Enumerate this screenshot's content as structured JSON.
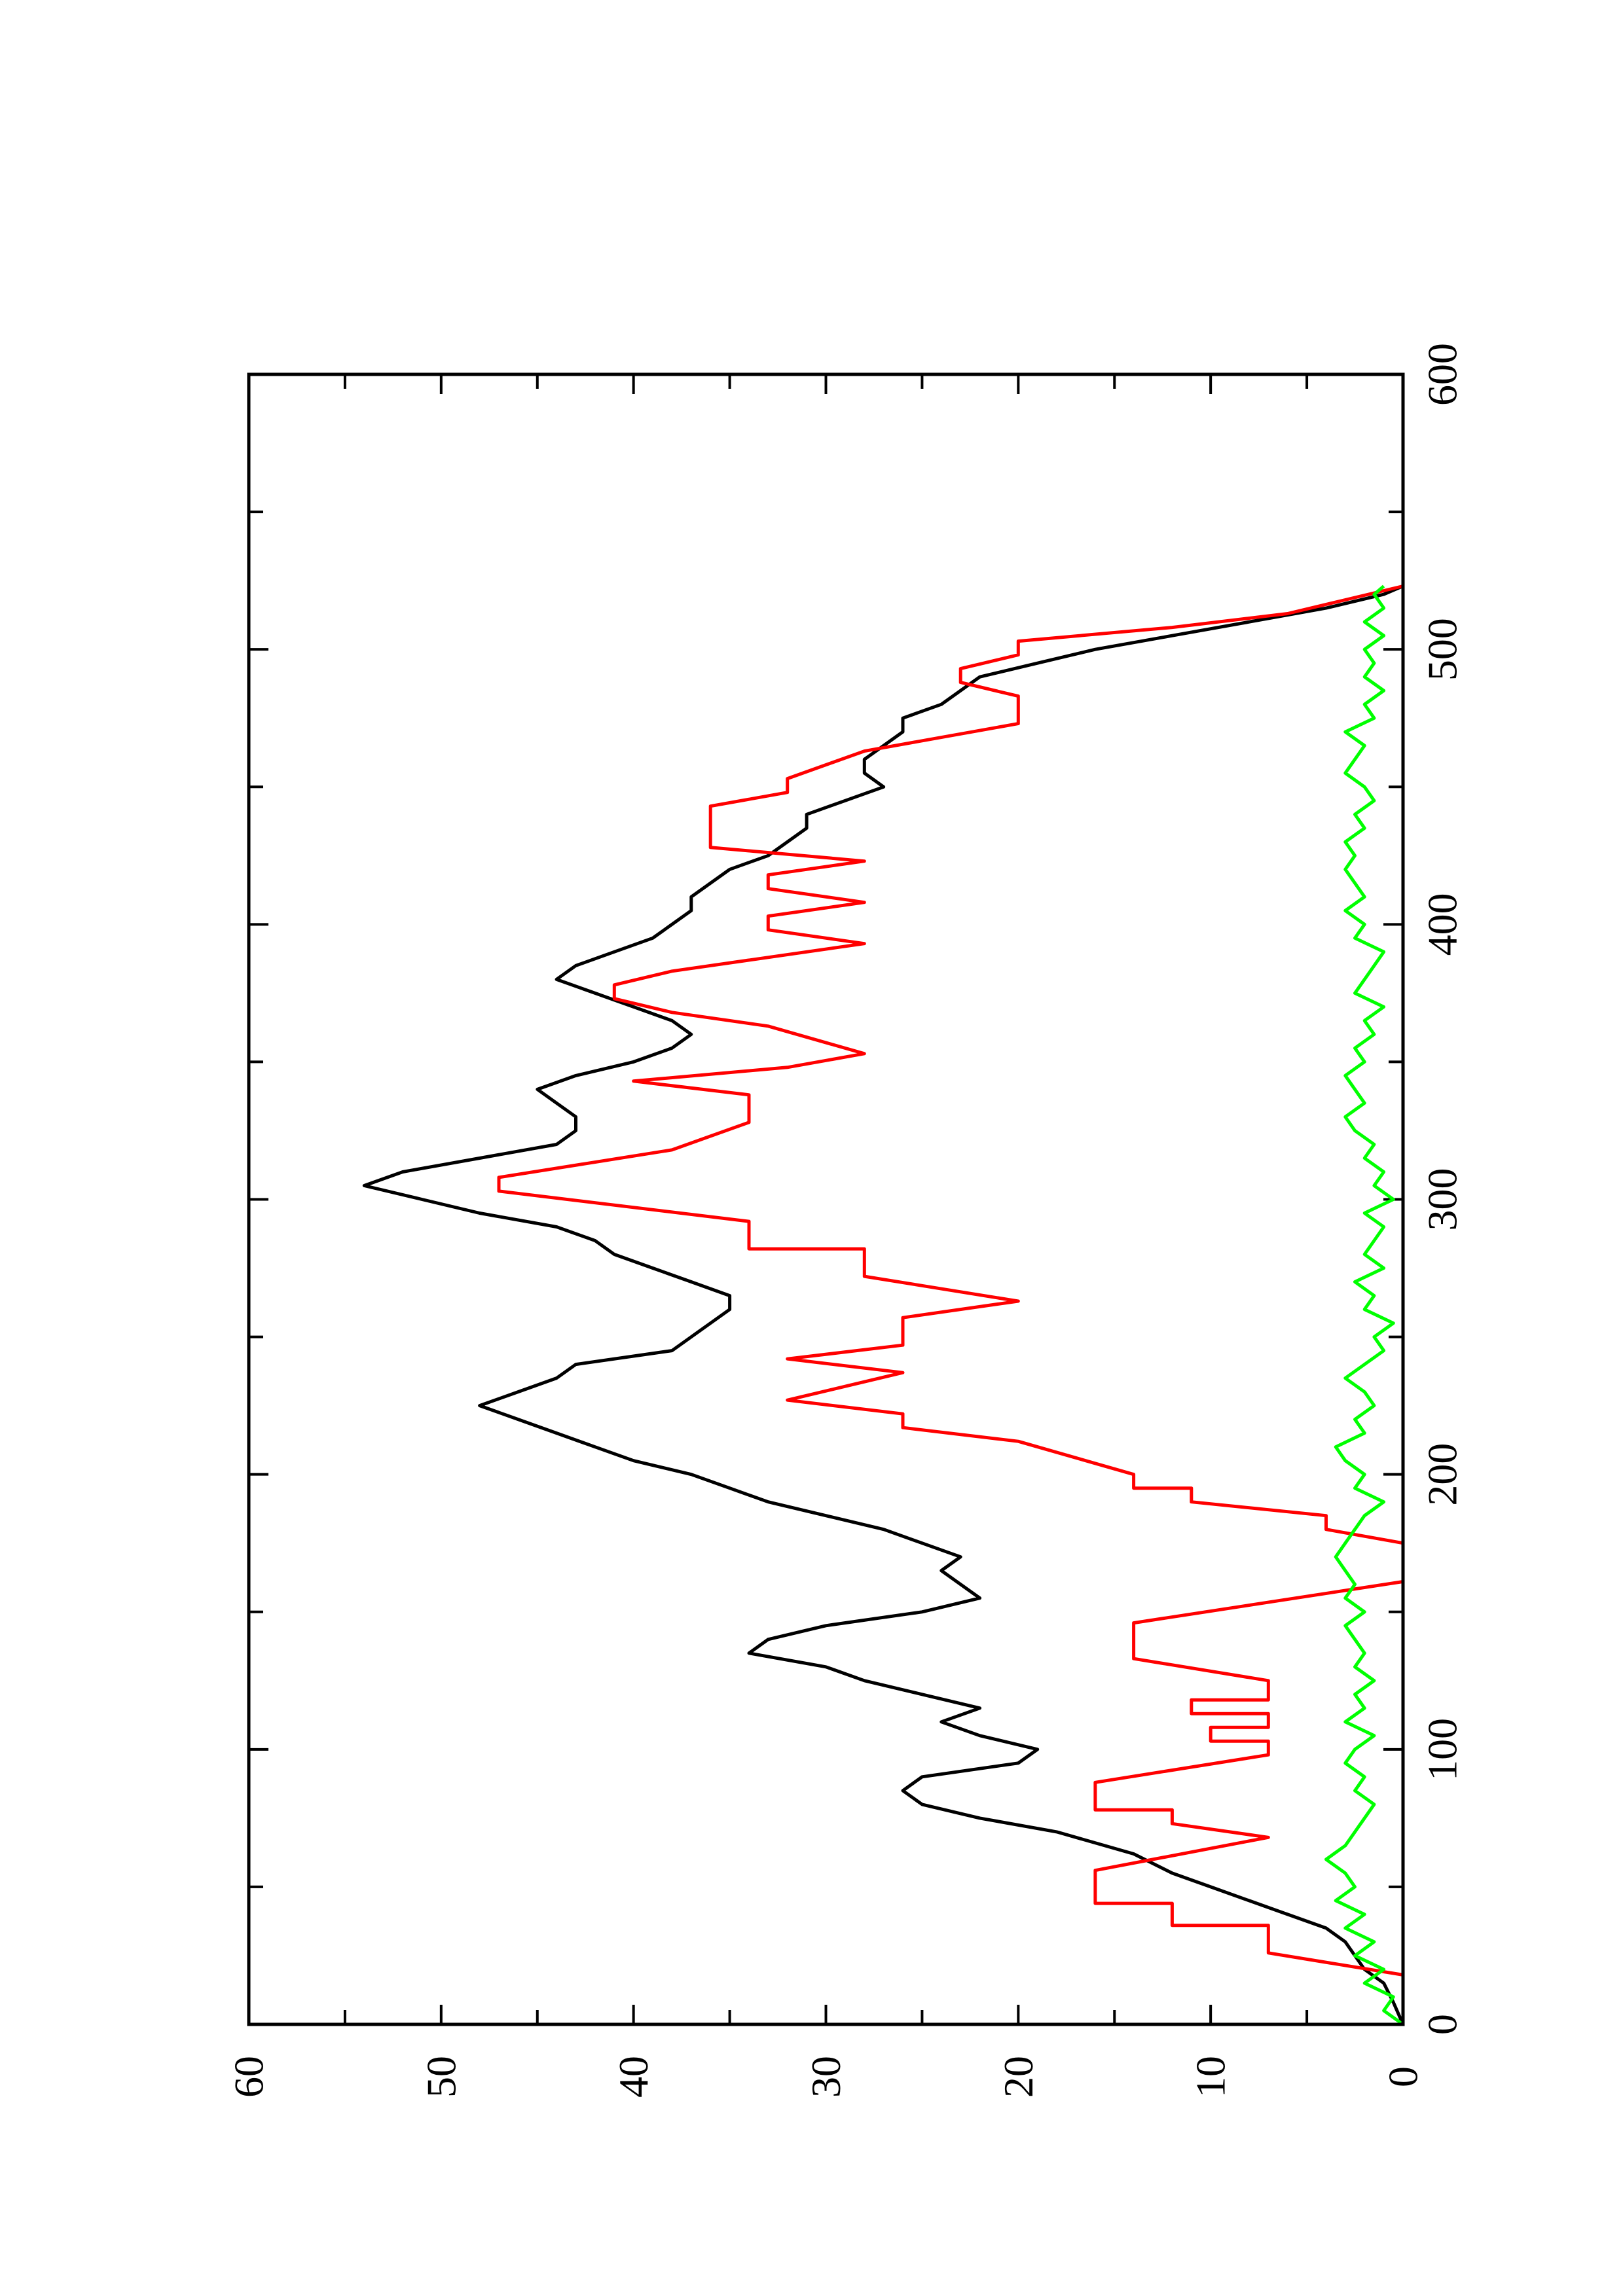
{
  "chart_data": {
    "type": "line",
    "title": "",
    "xlabel": "",
    "ylabel": "",
    "orientation": "rotated-90-ccw",
    "xlim": [
      0,
      600
    ],
    "ylim": [
      0,
      60
    ],
    "x_ticks": [
      "0",
      "100",
      "200",
      "300",
      "400",
      "500",
      "600"
    ],
    "y_ticks": [
      "0",
      "10",
      "20",
      "30",
      "40",
      "50",
      "60"
    ],
    "grid": false,
    "legend": "none",
    "series": [
      {
        "color": "#000000",
        "points": [
          [
            0,
            0
          ],
          [
            8,
            0.5
          ],
          [
            15,
            1
          ],
          [
            20,
            2
          ],
          [
            25,
            2.5
          ],
          [
            30,
            3
          ],
          [
            35,
            4
          ],
          [
            40,
            6
          ],
          [
            45,
            8
          ],
          [
            50,
            10
          ],
          [
            55,
            12
          ],
          [
            62,
            14
          ],
          [
            70,
            18
          ],
          [
            75,
            22
          ],
          [
            80,
            25
          ],
          [
            85,
            26
          ],
          [
            90,
            25
          ],
          [
            95,
            20
          ],
          [
            100,
            19
          ],
          [
            105,
            22
          ],
          [
            110,
            24
          ],
          [
            115,
            22
          ],
          [
            120,
            25
          ],
          [
            125,
            28
          ],
          [
            130,
            30
          ],
          [
            135,
            34
          ],
          [
            140,
            33
          ],
          [
            145,
            30
          ],
          [
            150,
            25
          ],
          [
            155,
            22
          ],
          [
            160,
            23
          ],
          [
            165,
            24
          ],
          [
            170,
            23
          ],
          [
            175,
            25
          ],
          [
            180,
            27
          ],
          [
            185,
            30
          ],
          [
            190,
            33
          ],
          [
            195,
            35
          ],
          [
            200,
            37
          ],
          [
            205,
            40
          ],
          [
            210,
            42
          ],
          [
            215,
            44
          ],
          [
            220,
            46
          ],
          [
            225,
            48
          ],
          [
            230,
            46
          ],
          [
            235,
            44
          ],
          [
            240,
            43
          ],
          [
            245,
            38
          ],
          [
            250,
            37
          ],
          [
            255,
            36
          ],
          [
            260,
            35
          ],
          [
            265,
            35
          ],
          [
            270,
            37
          ],
          [
            275,
            39
          ],
          [
            280,
            41
          ],
          [
            285,
            42
          ],
          [
            290,
            44
          ],
          [
            295,
            48
          ],
          [
            300,
            51
          ],
          [
            305,
            54
          ],
          [
            310,
            52
          ],
          [
            315,
            48
          ],
          [
            320,
            44
          ],
          [
            325,
            43
          ],
          [
            330,
            43
          ],
          [
            335,
            44
          ],
          [
            340,
            45
          ],
          [
            345,
            43
          ],
          [
            350,
            40
          ],
          [
            355,
            38
          ],
          [
            360,
            37
          ],
          [
            365,
            38
          ],
          [
            370,
            40
          ],
          [
            375,
            42
          ],
          [
            380,
            44
          ],
          [
            385,
            43
          ],
          [
            390,
            41
          ],
          [
            395,
            39
          ],
          [
            400,
            38
          ],
          [
            405,
            37
          ],
          [
            410,
            37
          ],
          [
            415,
            36
          ],
          [
            420,
            35
          ],
          [
            425,
            33
          ],
          [
            430,
            32
          ],
          [
            435,
            31
          ],
          [
            440,
            31
          ],
          [
            445,
            29
          ],
          [
            450,
            27
          ],
          [
            455,
            28
          ],
          [
            460,
            28
          ],
          [
            465,
            27
          ],
          [
            470,
            26
          ],
          [
            475,
            26
          ],
          [
            480,
            24
          ],
          [
            485,
            23
          ],
          [
            490,
            22
          ],
          [
            495,
            19
          ],
          [
            500,
            16
          ],
          [
            505,
            12
          ],
          [
            510,
            8
          ],
          [
            515,
            4
          ],
          [
            520,
            1
          ],
          [
            523,
            0
          ]
        ]
      },
      {
        "color": "#ff0000",
        "points": [
          [
            0,
            0
          ],
          [
            18,
            0
          ],
          [
            26,
            7
          ],
          [
            36,
            7
          ],
          [
            36,
            12
          ],
          [
            44,
            12
          ],
          [
            44,
            16
          ],
          [
            56,
            16
          ],
          [
            68,
            7
          ],
          [
            73,
            12
          ],
          [
            78,
            12
          ],
          [
            78,
            16
          ],
          [
            88,
            16
          ],
          [
            98,
            7
          ],
          [
            103,
            7
          ],
          [
            103,
            10
          ],
          [
            108,
            10
          ],
          [
            108,
            7
          ],
          [
            113,
            7
          ],
          [
            113,
            11
          ],
          [
            118,
            11
          ],
          [
            118,
            7
          ],
          [
            125,
            7
          ],
          [
            133,
            14
          ],
          [
            146,
            14
          ],
          [
            161,
            0
          ],
          [
            175,
            0
          ],
          [
            180,
            4
          ],
          [
            185,
            4
          ],
          [
            190,
            11
          ],
          [
            195,
            11
          ],
          [
            195,
            14
          ],
          [
            200,
            14
          ],
          [
            212,
            20
          ],
          [
            217,
            26
          ],
          [
            222,
            26
          ],
          [
            227,
            32
          ],
          [
            232,
            29
          ],
          [
            237,
            26
          ],
          [
            242,
            32
          ],
          [
            247,
            26
          ],
          [
            257,
            26
          ],
          [
            263,
            20
          ],
          [
            272,
            28
          ],
          [
            282,
            28
          ],
          [
            282,
            34
          ],
          [
            292,
            34
          ],
          [
            303,
            47
          ],
          [
            308,
            47
          ],
          [
            318,
            38
          ],
          [
            328,
            34
          ],
          [
            338,
            34
          ],
          [
            343,
            40
          ],
          [
            348,
            32
          ],
          [
            353,
            28
          ],
          [
            363,
            33
          ],
          [
            368,
            38
          ],
          [
            373,
            41
          ],
          [
            378,
            41
          ],
          [
            383,
            38
          ],
          [
            393,
            28
          ],
          [
            398,
            33
          ],
          [
            403,
            33
          ],
          [
            408,
            28
          ],
          [
            413,
            33
          ],
          [
            418,
            33
          ],
          [
            423,
            28
          ],
          [
            428,
            36
          ],
          [
            443,
            36
          ],
          [
            448,
            32
          ],
          [
            453,
            32
          ],
          [
            463,
            28
          ],
          [
            473,
            20
          ],
          [
            483,
            20
          ],
          [
            488,
            23
          ],
          [
            493,
            23
          ],
          [
            498,
            20
          ],
          [
            503,
            20
          ],
          [
            508,
            12
          ],
          [
            513,
            6
          ],
          [
            518,
            3
          ],
          [
            523,
            0
          ]
        ]
      },
      {
        "color": "#00ff00",
        "points": [
          [
            0,
            0
          ],
          [
            5,
            1
          ],
          [
            10,
            0.5
          ],
          [
            15,
            2
          ],
          [
            20,
            1
          ],
          [
            25,
            2.5
          ],
          [
            30,
            1.5
          ],
          [
            35,
            3
          ],
          [
            40,
            2
          ],
          [
            45,
            3.5
          ],
          [
            50,
            2.5
          ],
          [
            55,
            3
          ],
          [
            60,
            4
          ],
          [
            65,
            3
          ],
          [
            70,
            2.5
          ],
          [
            75,
            2
          ],
          [
            80,
            1.5
          ],
          [
            85,
            2.5
          ],
          [
            90,
            2
          ],
          [
            95,
            3
          ],
          [
            100,
            2.5
          ],
          [
            105,
            1.5
          ],
          [
            110,
            3
          ],
          [
            115,
            2
          ],
          [
            120,
            2.5
          ],
          [
            125,
            1.5
          ],
          [
            130,
            2.5
          ],
          [
            135,
            2
          ],
          [
            140,
            2.5
          ],
          [
            145,
            3
          ],
          [
            150,
            2
          ],
          [
            155,
            3
          ],
          [
            160,
            2.5
          ],
          [
            165,
            3
          ],
          [
            170,
            3.5
          ],
          [
            175,
            3
          ],
          [
            180,
            2.5
          ],
          [
            185,
            2
          ],
          [
            190,
            1
          ],
          [
            195,
            2.5
          ],
          [
            200,
            2
          ],
          [
            205,
            3
          ],
          [
            210,
            3.5
          ],
          [
            215,
            2
          ],
          [
            220,
            2.5
          ],
          [
            225,
            1.5
          ],
          [
            230,
            2
          ],
          [
            235,
            3
          ],
          [
            240,
            2
          ],
          [
            245,
            1
          ],
          [
            250,
            1.5
          ],
          [
            255,
            0.5
          ],
          [
            260,
            2
          ],
          [
            265,
            1.5
          ],
          [
            270,
            2.5
          ],
          [
            275,
            1
          ],
          [
            280,
            2
          ],
          [
            285,
            1.5
          ],
          [
            290,
            1
          ],
          [
            295,
            2
          ],
          [
            300,
            0.5
          ],
          [
            305,
            1.5
          ],
          [
            310,
            1
          ],
          [
            315,
            2
          ],
          [
            320,
            1.5
          ],
          [
            325,
            2.5
          ],
          [
            330,
            3
          ],
          [
            335,
            2
          ],
          [
            340,
            2.5
          ],
          [
            345,
            3
          ],
          [
            350,
            2
          ],
          [
            355,
            2.5
          ],
          [
            360,
            1.5
          ],
          [
            365,
            2
          ],
          [
            370,
            1
          ],
          [
            375,
            2.5
          ],
          [
            380,
            2
          ],
          [
            385,
            1.5
          ],
          [
            390,
            1
          ],
          [
            395,
            2.5
          ],
          [
            400,
            2
          ],
          [
            405,
            3
          ],
          [
            410,
            2
          ],
          [
            415,
            2.5
          ],
          [
            420,
            3
          ],
          [
            425,
            2.5
          ],
          [
            430,
            3
          ],
          [
            435,
            2
          ],
          [
            440,
            2.5
          ],
          [
            445,
            1.5
          ],
          [
            450,
            2
          ],
          [
            455,
            3
          ],
          [
            460,
            2.5
          ],
          [
            465,
            2
          ],
          [
            470,
            3
          ],
          [
            475,
            1.5
          ],
          [
            480,
            2
          ],
          [
            485,
            1
          ],
          [
            490,
            2
          ],
          [
            495,
            1.5
          ],
          [
            500,
            2
          ],
          [
            505,
            1
          ],
          [
            510,
            2
          ],
          [
            515,
            1
          ],
          [
            520,
            1.5
          ],
          [
            523,
            1
          ]
        ]
      }
    ]
  }
}
